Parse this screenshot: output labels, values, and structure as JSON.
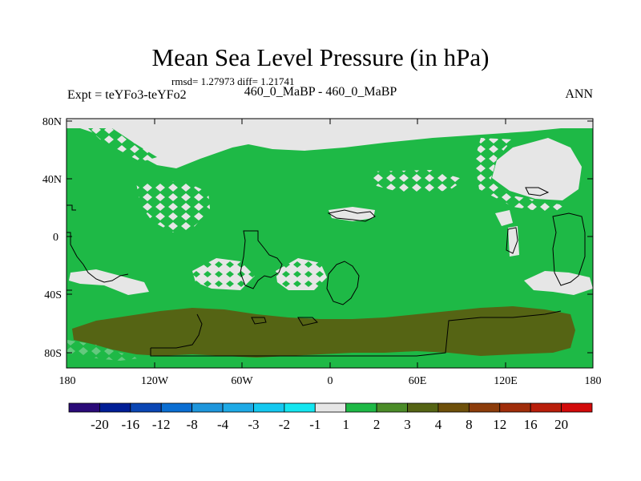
{
  "title": "Mean Sea Level Pressure (in hPa)",
  "stats": "rmsd= 1.27973 diff= 1.21741",
  "expt": "Expt = teYFo3-teYFo2",
  "period": "460_0_MaBP - 460_0_MaBP",
  "season": "ANN",
  "y_ticks": [
    "80N",
    "40N",
    "0",
    "40S",
    "80S"
  ],
  "x_ticks": [
    "180",
    "120W",
    "60W",
    "0",
    "60E",
    "120E",
    "180"
  ],
  "colorbar": {
    "colors": [
      "#2a0a78",
      "#001e96",
      "#0a46b4",
      "#0a6ed2",
      "#1e96dc",
      "#1eaae6",
      "#14c8f0",
      "#14e6f0",
      "#e6e6e6",
      "#1eb946",
      "#4b8c28",
      "#556414",
      "#6e500a",
      "#8c3c0a",
      "#a02d0a",
      "#b91e0a",
      "#d20a0a"
    ],
    "labels": [
      "-20",
      "-16",
      "-12",
      "-8",
      "-4",
      "-3",
      "-2",
      "-1",
      "1",
      "2",
      "3",
      "4",
      "8",
      "12",
      "16",
      "20"
    ]
  },
  "map_colors": {
    "green": "#1eb946",
    "grey": "#e6e6e6",
    "olive": "#556414",
    "coast": "#000000"
  }
}
